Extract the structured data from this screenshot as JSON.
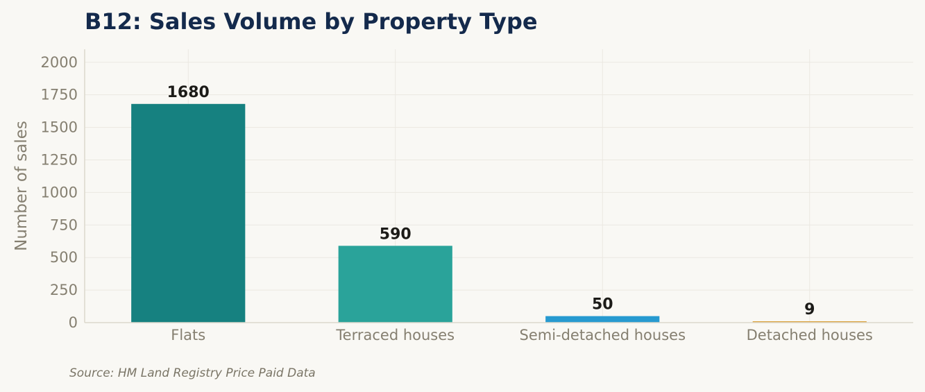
{
  "chart_data": {
    "type": "bar",
    "title": "B12: Sales Volume by Property Type",
    "xlabel": "",
    "ylabel": "Number of sales",
    "categories": [
      "Flats",
      "Terraced houses",
      "Semi-detached houses",
      "Detached houses"
    ],
    "values": [
      1680,
      590,
      50,
      9
    ],
    "data_labels": [
      "1680",
      "590",
      "50",
      "9"
    ],
    "colors": [
      "#168180",
      "#2aa39a",
      "#279ad0",
      "#dba441"
    ],
    "ylim": [
      0,
      2100
    ],
    "yticks": [
      0,
      250,
      500,
      750,
      1000,
      1250,
      1500,
      1750,
      2000
    ],
    "grid": true,
    "legend": "none"
  },
  "source_note": "Source: HM Land Registry Price Paid Data"
}
